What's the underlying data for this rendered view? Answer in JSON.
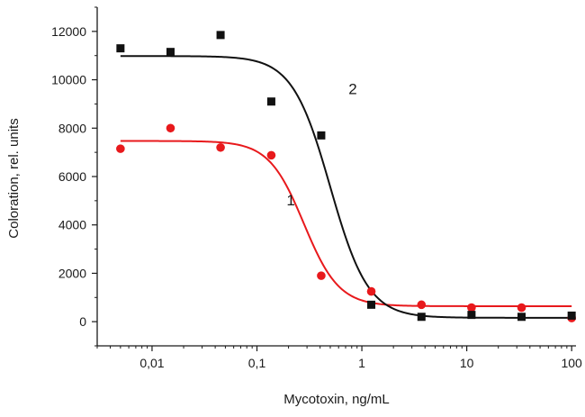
{
  "chart_data": {
    "type": "scatter",
    "title": "",
    "xlabel": "Mycotoxin, ng/mL",
    "ylabel": "Coloration, rel. units",
    "x_scale": "log",
    "xlim": [
      0.003,
      110
    ],
    "ylim": [
      -1000,
      13000
    ],
    "x_ticks": [
      {
        "value": 0.01,
        "label": "0,01"
      },
      {
        "value": 0.1,
        "label": "0,1"
      },
      {
        "value": 1,
        "label": "1"
      },
      {
        "value": 10,
        "label": "10"
      },
      {
        "value": 100,
        "label": "100"
      }
    ],
    "y_ticks": [
      0,
      2000,
      4000,
      6000,
      8000,
      10000,
      12000
    ],
    "grid": false,
    "series": [
      {
        "name": "1",
        "color": "#e8191c",
        "marker": "circle",
        "points": [
          {
            "x": 0.005,
            "y": 7150
          },
          {
            "x": 0.015,
            "y": 8000
          },
          {
            "x": 0.045,
            "y": 7200
          },
          {
            "x": 0.137,
            "y": 6880
          },
          {
            "x": 0.41,
            "y": 1900
          },
          {
            "x": 1.23,
            "y": 1250
          },
          {
            "x": 3.7,
            "y": 700
          },
          {
            "x": 11.1,
            "y": 580
          },
          {
            "x": 33.3,
            "y": 580
          },
          {
            "x": 100,
            "y": 150
          }
        ],
        "fit": {
          "top": 7470,
          "bottom": 640,
          "ec50": 0.28,
          "hill": 2.6
        }
      },
      {
        "name": "2",
        "color": "#111111",
        "marker": "square",
        "points": [
          {
            "x": 0.005,
            "y": 11300
          },
          {
            "x": 0.015,
            "y": 11150
          },
          {
            "x": 0.045,
            "y": 11850
          },
          {
            "x": 0.137,
            "y": 9100
          },
          {
            "x": 0.41,
            "y": 7700
          },
          {
            "x": 1.23,
            "y": 700
          },
          {
            "x": 3.7,
            "y": 200
          },
          {
            "x": 11.1,
            "y": 280
          },
          {
            "x": 33.3,
            "y": 200
          },
          {
            "x": 100,
            "y": 250
          }
        ],
        "fit": {
          "top": 10980,
          "bottom": 160,
          "ec50": 0.5,
          "hill": 2.4
        }
      }
    ]
  }
}
